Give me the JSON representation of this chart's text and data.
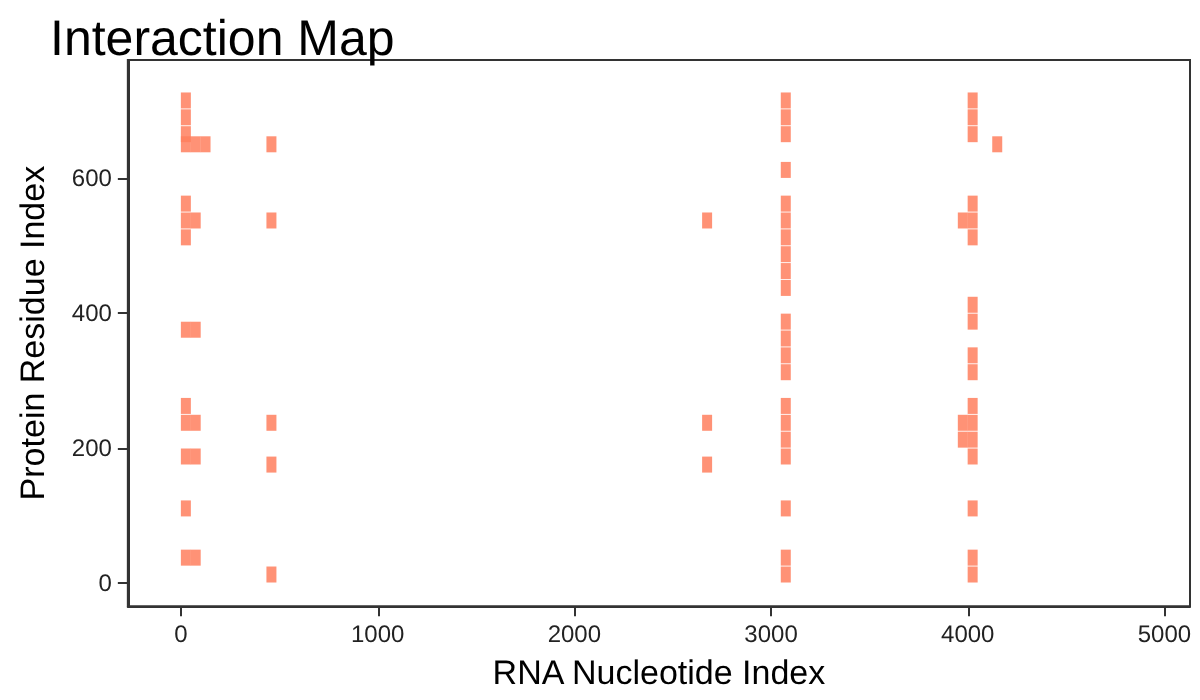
{
  "chart_data": {
    "type": "scatter",
    "title": "Interaction Map",
    "xlabel": "RNA Nucleotide Index",
    "ylabel": "Protein Residue Index",
    "x": [
      25,
      25,
      25,
      25,
      75,
      125,
      25,
      25,
      25,
      75,
      25,
      75,
      25,
      25,
      75,
      25,
      75,
      25,
      25,
      75,
      460,
      460,
      460,
      460,
      460,
      2675,
      2675,
      2675,
      3075,
      3075,
      3075,
      3075,
      3075,
      3075,
      3075,
      3075,
      3075,
      3075,
      3075,
      3075,
      3075,
      3075,
      3075,
      3075,
      3075,
      3075,
      3075,
      3075,
      3075,
      4025,
      4025,
      4025,
      4025,
      4025,
      4025,
      3975,
      4025,
      4025,
      4025,
      4025,
      4025,
      4025,
      4025,
      3975,
      3975,
      4025,
      4025,
      4025,
      4025,
      4150
    ],
    "series": [
      {
        "color": "#ff7f5e",
        "values": [
          715,
          690,
          665,
          650,
          650,
          650,
          562,
          537,
          512,
          537,
          375,
          375,
          262,
          237,
          237,
          187,
          187,
          110,
          37,
          37,
          650,
          537,
          237,
          175,
          12,
          537,
          237,
          175,
          715,
          690,
          665,
          612,
          562,
          537,
          512,
          487,
          462,
          437,
          387,
          362,
          337,
          312,
          262,
          237,
          212,
          187,
          110,
          37,
          12,
          715,
          690,
          665,
          562,
          537,
          512,
          537,
          412,
          387,
          337,
          312,
          262,
          237,
          212,
          237,
          212,
          187,
          110,
          37,
          12,
          650
        ]
      }
    ],
    "xlim": [
      -270,
      5130
    ],
    "ylim": [
      -35,
      775
    ],
    "xticks": [
      0,
      1000,
      2000,
      3000,
      4000,
      5000
    ],
    "yticks": [
      0,
      200,
      400,
      600
    ],
    "grid": false,
    "marker": "square"
  }
}
